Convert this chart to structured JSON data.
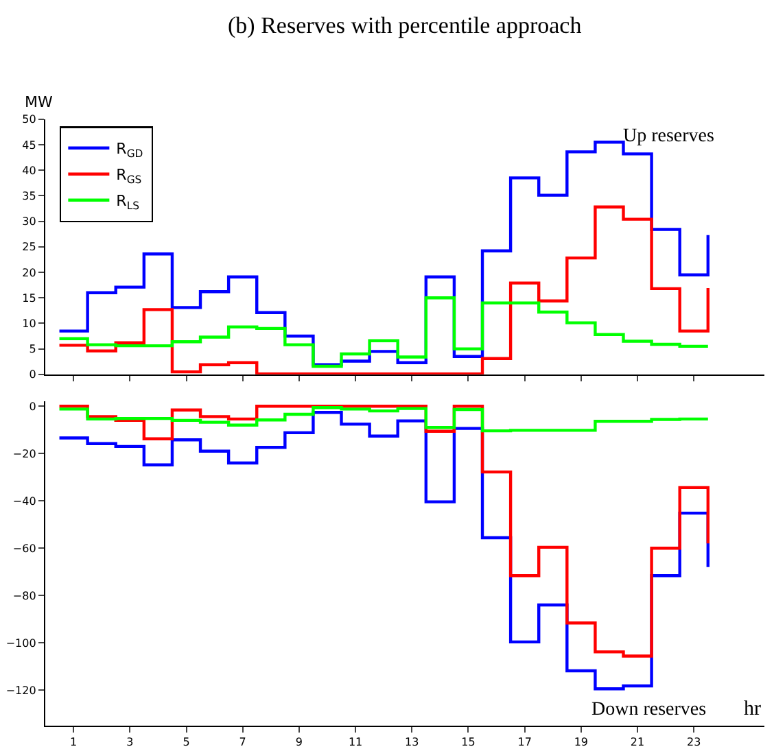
{
  "chart_data": [
    {
      "type": "step",
      "title": "(b) Reserves with percentile approach",
      "ylabel": "MW",
      "annotations": [
        "Up reserves"
      ],
      "x": [
        0.5,
        1.5,
        2.5,
        3.5,
        4.5,
        5.5,
        6.5,
        7.5,
        8.5,
        9.5,
        10.5,
        11.5,
        12.5,
        13.5,
        14.5,
        15.5,
        16.5,
        17.5,
        18.5,
        19.5,
        20.5,
        21.5,
        22.5,
        23.5
      ],
      "series": [
        {
          "name": "R$_{GD}$",
          "color": "#0000ff",
          "values": [
            8.5,
            16,
            17.1,
            23.6,
            13.1,
            16.2,
            19.1,
            12.1,
            7.5,
            1.9,
            2.6,
            4.5,
            2.3,
            19.1,
            3.5,
            24.2,
            38.5,
            35.1,
            43.6,
            45.5,
            43.2,
            28.4,
            19.5,
            27.3
          ]
        },
        {
          "name": "R$_{GS}$",
          "color": "#ff0000",
          "values": [
            5.7,
            4.6,
            6.2,
            12.7,
            0.5,
            1.9,
            2.3,
            0.1,
            0.1,
            0.1,
            0.1,
            0.1,
            0.1,
            0.1,
            0.1,
            3.1,
            17.9,
            14.4,
            22.8,
            32.8,
            30.4,
            16.8,
            8.5,
            16.9
          ]
        },
        {
          "name": "R$_{LS}$",
          "color": "#00ff00",
          "values": [
            7,
            5.8,
            5.6,
            5.6,
            6.4,
            7.3,
            9.3,
            9,
            5.8,
            1.6,
            4,
            6.6,
            3.4,
            15,
            5,
            14,
            14,
            12.2,
            10.1,
            7.8,
            6.5,
            5.9,
            5.5,
            5.5
          ]
        }
      ],
      "xlim": [
        0,
        25.5
      ],
      "xticks": [
        1,
        3,
        5,
        7,
        9,
        11,
        13,
        15,
        17,
        19,
        21,
        23
      ],
      "ylim": [
        0,
        50
      ],
      "yticks": [
        0,
        5,
        10,
        15,
        20,
        25,
        30,
        35,
        40,
        45,
        50
      ],
      "tick_labels": "y",
      "legend": "top left"
    },
    {
      "type": "step",
      "xlabel": "hr",
      "annotations": [
        "Down reserves"
      ],
      "x": [
        0.5,
        1.5,
        2.5,
        3.5,
        4.5,
        5.5,
        6.5,
        7.5,
        8.5,
        9.5,
        10.5,
        11.5,
        12.5,
        13.5,
        14.5,
        15.5,
        16.5,
        17.5,
        18.5,
        19.5,
        20.5,
        21.5,
        22.5,
        23.5
      ],
      "series": [
        {
          "color": "#0000ff",
          "values": [
            -13.4,
            -15.8,
            -17,
            -24.8,
            -14.2,
            -19,
            -24,
            -17.4,
            -11.2,
            -2.6,
            -7.6,
            -12.6,
            -6.2,
            -40.4,
            -9.4,
            -55.6,
            -99.6,
            -84,
            -111.8,
            -119.4,
            -118.2,
            -71.6,
            -45.2,
            -68
          ]
        },
        {
          "color": "#ff0000",
          "values": [
            0,
            -4.4,
            -6,
            -13.8,
            -1.6,
            -4.4,
            -5.4,
            0,
            0,
            0,
            0,
            0,
            0,
            -10.6,
            0,
            -27.8,
            -71.6,
            -59.6,
            -91.6,
            -103.8,
            -105.6,
            -60,
            -34.4,
            -58
          ]
        },
        {
          "color": "#00ff00",
          "values": [
            -1.2,
            -5.4,
            -5.2,
            -5.2,
            -6,
            -6.8,
            -8,
            -5.8,
            -3.4,
            -0.6,
            -1.2,
            -2,
            -1,
            -9,
            -1.4,
            -10.4,
            -10.2,
            -10.2,
            -10.2,
            -6.4,
            -6.4,
            -5.6,
            -5.4,
            -5.4
          ]
        }
      ],
      "xlim": [
        0,
        25.5
      ],
      "xticks": [
        1,
        3,
        5,
        7,
        9,
        11,
        13,
        15,
        17,
        19,
        21,
        23
      ],
      "ylim": [
        -135,
        2
      ],
      "yticks": [
        0,
        {
          "value": -20,
          "label": "−20"
        },
        {
          "value": -40,
          "label": "−40"
        },
        {
          "value": -60,
          "label": "−60"
        },
        {
          "value": -80,
          "label": "−80"
        },
        {
          "value": -100,
          "label": "−100"
        },
        {
          "value": -120,
          "label": "−120"
        }
      ],
      "legend": false
    }
  ]
}
